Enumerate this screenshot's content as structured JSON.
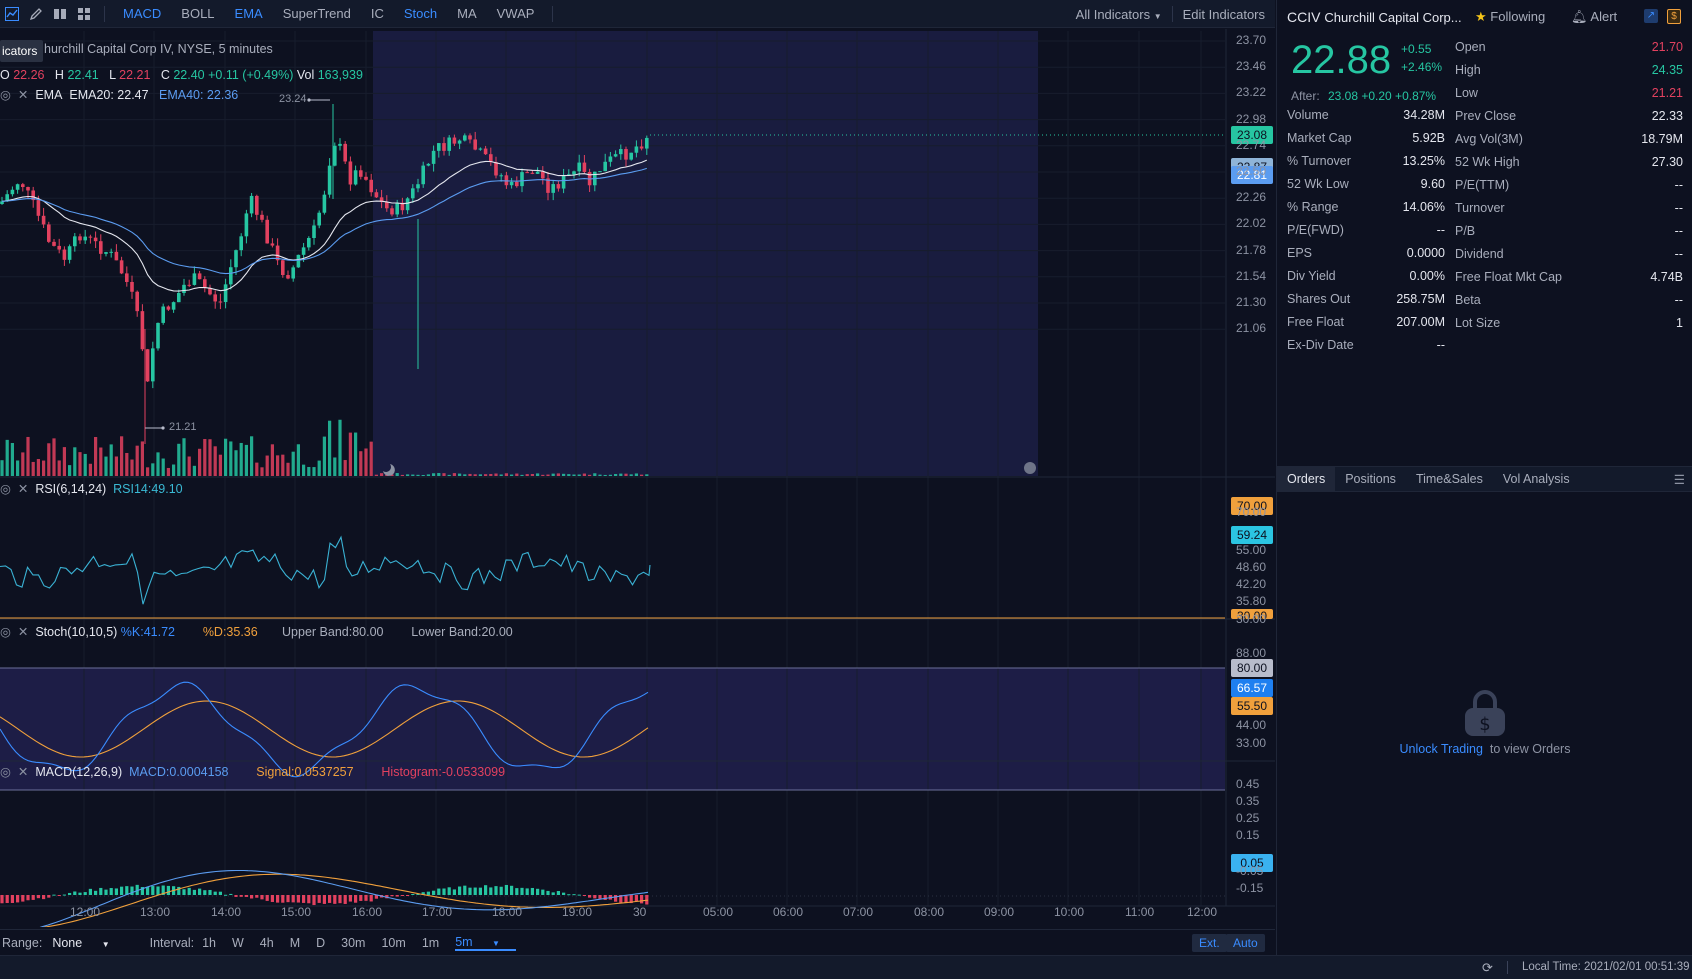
{
  "toolbar": {
    "indicators": [
      "MACD",
      "BOLL",
      "EMA",
      "SuperTrend",
      "IC",
      "Stoch",
      "MA",
      "VWAP"
    ],
    "all_indicators": "All Indicators",
    "edit_indicators": "Edit Indicators"
  },
  "chart_header": {
    "tooltip": "icators",
    "title": "hurchill Capital Corp IV, NYSE, 5 minutes",
    "o_label": "O",
    "o_value": "22.26",
    "h_label": "H",
    "h_value": "22.41",
    "l_label": "L",
    "l_value": "22.21",
    "c_label": "C",
    "c_value": "22.40",
    "change": "+0.11 (+0.49%)",
    "vol_label": "Vol",
    "vol_value": "163,939",
    "ema_label": "EMA",
    "ema20": "EMA20: 22.47",
    "ema40": "EMA40: 22.36",
    "high_mark": "23.24",
    "low_mark": "21.21"
  },
  "price_axis": [
    "23.70",
    "23.46",
    "23.22",
    "22.98",
    "22.74",
    "22.50",
    "22.26",
    "22.02",
    "21.78",
    "21.54",
    "21.30",
    "21.06"
  ],
  "price_tags": {
    "last": "23.08",
    "ema": "22.81",
    "ema_hidden": "22.87"
  },
  "rsi": {
    "label": "RSI(6,14,24)",
    "value": "RSI14:49.10",
    "axis": [
      "70.00",
      "55.00",
      "48.60",
      "42.20",
      "35.80",
      "30.00"
    ],
    "tag_upper": "70.00",
    "tag_current": "59.24",
    "tag_lower": "30.00"
  },
  "stoch": {
    "label": "Stoch(10,10,5)",
    "k": "%K:41.72",
    "d": "%D:35.36",
    "upper": "Upper Band:80.00",
    "lower": "Lower Band:20.00",
    "axis": [
      "88.00",
      "44.00",
      "33.00"
    ],
    "tag_upper": "80.00",
    "tag_k": "66.57",
    "tag_d": "55.50"
  },
  "macd": {
    "label": "MACD(12,26,9)",
    "macd": "MACD:0.0004158",
    "signal": "Signal:0.0537257",
    "histogram": "Histogram:-0.0533099",
    "axis": [
      "0.45",
      "0.35",
      "0.25",
      "0.15",
      "-0.05",
      "-0.15"
    ],
    "tag": "0.05"
  },
  "time_axis": [
    "12:00",
    "13:00",
    "14:00",
    "15:00",
    "16:00",
    "17:00",
    "18:00",
    "19:00",
    "30",
    "05:00",
    "06:00",
    "07:00",
    "08:00",
    "09:00",
    "10:00",
    "11:00",
    "12:00"
  ],
  "rangebar": {
    "range_label": "Range:",
    "range_value": "None",
    "interval_label": "Interval:",
    "intervals": [
      "1h",
      "W",
      "4h",
      "M",
      "D",
      "30m",
      "10m",
      "1m",
      "5m"
    ],
    "ext": "Ext.",
    "auto": "Auto"
  },
  "status": {
    "local_time": "Local Time: 2021/02/01 00:51:39"
  },
  "quote": {
    "symbol": "CCIV",
    "name": "Churchill Capital Corp...",
    "following": "Following",
    "alert": "Alert",
    "price": "22.88",
    "change": "+0.55",
    "change_pct": "+2.46%",
    "after_label": "After:",
    "after": "23.08 +0.20 +0.87%"
  },
  "stats_left": [
    [
      "Volume",
      "34.28M"
    ],
    [
      "Market Cap",
      "5.92B"
    ],
    [
      "% Turnover",
      "13.25%"
    ],
    [
      "52 Wk Low",
      "9.60"
    ],
    [
      "% Range",
      "14.06%"
    ],
    [
      "P/E(FWD)",
      "--"
    ],
    [
      "EPS",
      "0.0000"
    ],
    [
      "Div Yield",
      "0.00%"
    ],
    [
      "Shares Out",
      "258.75M"
    ],
    [
      "Free Float",
      "207.00M"
    ],
    [
      "Ex-Div Date",
      "--"
    ]
  ],
  "stats_right": [
    [
      "Open",
      "21.70"
    ],
    [
      "High",
      "24.35"
    ],
    [
      "Low",
      "21.21"
    ],
    [
      "Prev Close",
      "22.33"
    ],
    [
      "Avg Vol(3M)",
      "18.79M"
    ],
    [
      "52 Wk High",
      "27.30"
    ],
    [
      "P/E(TTM)",
      "--"
    ],
    [
      "Turnover",
      "--"
    ],
    [
      "P/B",
      "--"
    ],
    [
      "Dividend",
      "--"
    ],
    [
      "Free Float Mkt Cap",
      "4.74B"
    ],
    [
      "Beta",
      "--"
    ],
    [
      "Lot Size",
      "1"
    ]
  ],
  "tabs": [
    "Orders",
    "Positions",
    "Time&Sales",
    "Vol Analysis"
  ],
  "orders": {
    "link": "Unlock Trading",
    "text": "to view Orders"
  },
  "colors": {
    "up": "#26c6a2",
    "down": "#e2415f",
    "accent": "#3a8cff",
    "ema40": "#5b9cf0",
    "orange": "#f0a03c"
  }
}
